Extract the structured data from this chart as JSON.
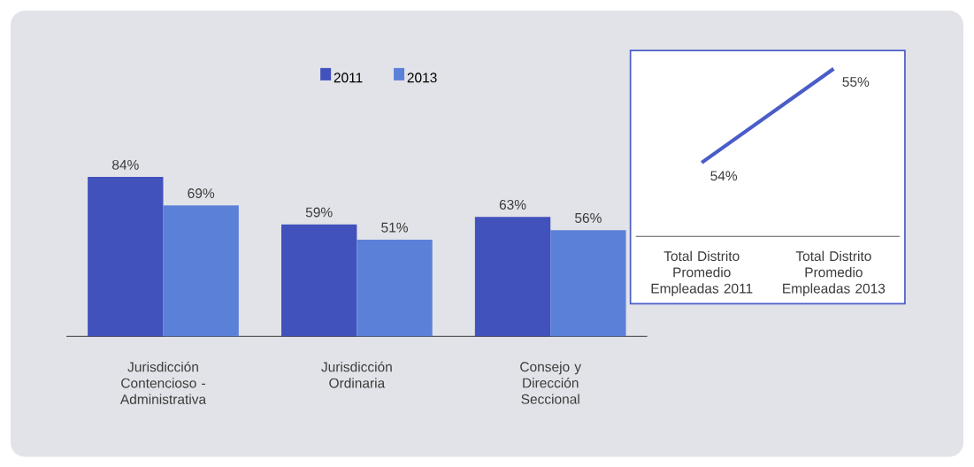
{
  "chart_data": [
    {
      "type": "bar",
      "categories": [
        "Jurisdicción Contencioso - Administrativa",
        "Jurisdicción Ordinaria",
        "Consejo y Dirección Seccional"
      ],
      "legend": "top",
      "series": [
        {
          "name": "2011",
          "color": "#4152bc",
          "values": [
            84,
            59,
            63
          ],
          "value_labels": [
            "84%",
            "59%",
            "63%"
          ]
        },
        {
          "name": "2013",
          "color": "#5b80d8",
          "values": [
            69,
            51,
            56
          ],
          "value_labels": [
            "69%",
            "51%",
            "56%"
          ]
        }
      ]
    },
    {
      "type": "line",
      "categories": [
        "Total Distrito Promedio Empleadas 2011",
        "Total Distrito Promedio Empleadas 2013"
      ],
      "legend": false,
      "marker": "none",
      "series": [
        {
          "color": "#4a5cc8",
          "values": [
            54,
            55
          ],
          "value_labels": [
            "54%",
            "55%"
          ]
        }
      ]
    }
  ]
}
